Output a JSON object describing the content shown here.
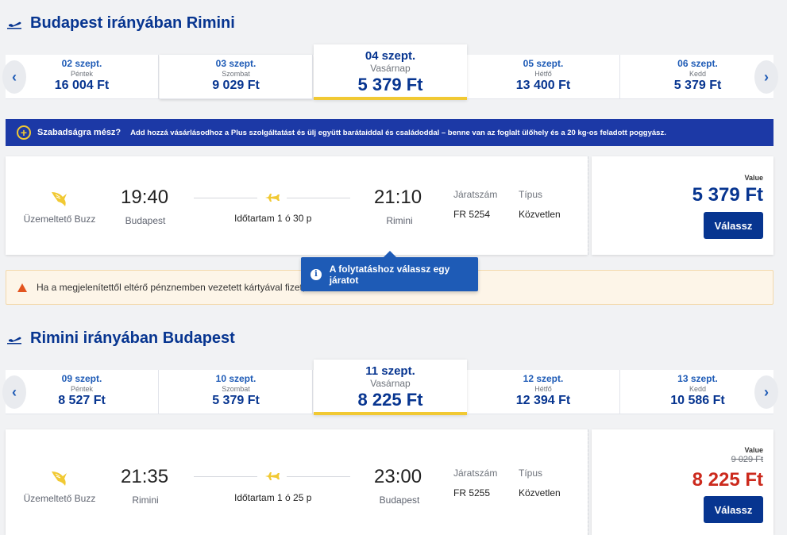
{
  "outbound": {
    "title": "Budapest irányában Rimini",
    "dates": [
      {
        "date": "02 szept.",
        "weekday": "Péntek",
        "price": "16 004 Ft"
      },
      {
        "date": "03 szept.",
        "weekday": "Szombat",
        "price": "9 029 Ft"
      },
      {
        "date": "04 szept.",
        "weekday": "Vasárnap",
        "price": "5 379 Ft"
      },
      {
        "date": "05 szept.",
        "weekday": "Hétfő",
        "price": "13 400 Ft"
      },
      {
        "date": "06 szept.",
        "weekday": "Kedd",
        "price": "5 379 Ft"
      }
    ],
    "flight": {
      "operator": "Üzemeltető Buzz",
      "dep_time": "19:40",
      "dep_city": "Budapest",
      "duration": "Időtartam 1 ó 30 p",
      "arr_time": "21:10",
      "arr_city": "Rimini",
      "flight_no_label": "Járatszám",
      "flight_no": "FR 5254",
      "type_label": "Típus",
      "type": "Közvetlen",
      "fare_label": "Value",
      "price": "5 379 Ft",
      "select_label": "Válassz"
    }
  },
  "promo": {
    "title": "Szabadságra mész?",
    "text": "Add hozzá vásárlásodhoz a Plus szolgáltatást és ülj együtt barátaiddal és családoddal – benne van az foglalt ülőhely és a 20 kg-os feladott poggyász."
  },
  "warning": {
    "text": "Ha a megjelenítettől eltérő pénznemben vezetett kártyával fizet, a"
  },
  "tooltip": {
    "text": "A folytatáshoz válassz egy járatot"
  },
  "inbound": {
    "title": "Rimini irányában Budapest",
    "dates": [
      {
        "date": "09 szept.",
        "weekday": "Péntek",
        "price": "8 527 Ft"
      },
      {
        "date": "10 szept.",
        "weekday": "Szombat",
        "price": "5 379 Ft"
      },
      {
        "date": "11 szept.",
        "weekday": "Vasárnap",
        "price": "8 225 Ft"
      },
      {
        "date": "12 szept.",
        "weekday": "Hétfő",
        "price": "12 394 Ft"
      },
      {
        "date": "13 szept.",
        "weekday": "Kedd",
        "price": "10 586 Ft"
      }
    ],
    "flight": {
      "operator": "Üzemeltető Buzz",
      "dep_time": "21:35",
      "dep_city": "Rimini",
      "duration": "Időtartam 1 ó 25 p",
      "arr_time": "23:00",
      "arr_city": "Budapest",
      "flight_no_label": "Járatszám",
      "flight_no": "FR 5255",
      "type_label": "Típus",
      "type": "Közvetlen",
      "fare_label": "Value",
      "old_price": "9 029 Ft",
      "price": "8 225 Ft",
      "select_label": "Válassz"
    }
  },
  "nav": {
    "prev": "‹",
    "next": "›"
  },
  "colors": {
    "brand": "#073590",
    "accent": "#f1c933",
    "sale": "#cc2a1d"
  }
}
